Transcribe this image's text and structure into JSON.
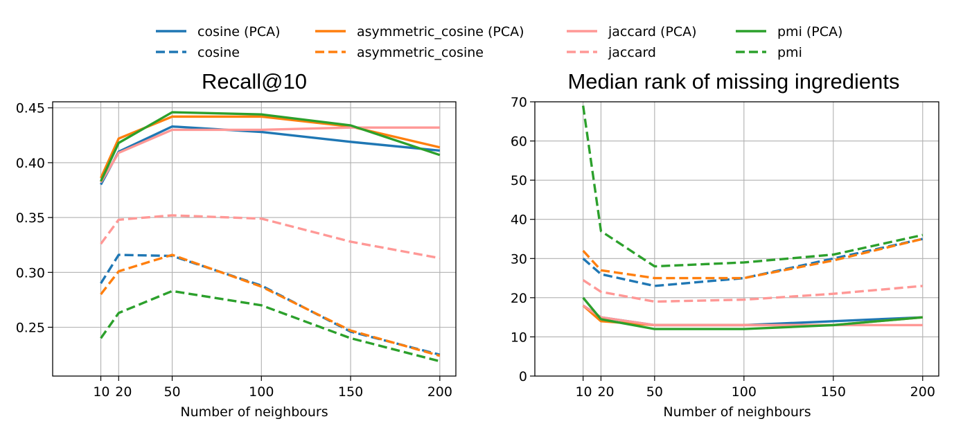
{
  "legend": {
    "entries": [
      {
        "label": "cosine (PCA)",
        "color": "#1f77b4",
        "style": "solid"
      },
      {
        "label": "cosine",
        "color": "#1f77b4",
        "style": "dashed"
      },
      {
        "label": "asymmetric_cosine (PCA)",
        "color": "#ff7f0e",
        "style": "solid"
      },
      {
        "label": "asymmetric_cosine",
        "color": "#ff7f0e",
        "style": "dashed"
      },
      {
        "label": "jaccard (PCA)",
        "color": "#ff9896",
        "style": "solid"
      },
      {
        "label": "jaccard",
        "color": "#ff9896",
        "style": "dashed"
      },
      {
        "label": "pmi (PCA)",
        "color": "#2ca02c",
        "style": "solid"
      },
      {
        "label": "pmi",
        "color": "#2ca02c",
        "style": "dashed"
      }
    ]
  },
  "chart_data": [
    {
      "type": "line",
      "title": "Recall@10",
      "xlabel": "Number of neighbours",
      "ylabel": "",
      "grid": true,
      "x": [
        10,
        20,
        50,
        100,
        150,
        200
      ],
      "xticks": [
        10,
        20,
        50,
        100,
        150,
        200
      ],
      "xtick_labels": [
        "10",
        "20",
        "50",
        "100",
        "150",
        "200"
      ],
      "yticks": [
        0.25,
        0.3,
        0.35,
        0.4,
        0.45
      ],
      "ytick_labels": [
        "0.25",
        "0.30",
        "0.35",
        "0.40",
        "0.45"
      ],
      "xlim": [
        -17,
        209
      ],
      "ylim": [
        0.2055,
        0.4555
      ],
      "series": [
        {
          "name": "cosine (PCA)",
          "color": "#1f77b4",
          "style": "solid",
          "values": [
            0.38,
            0.41,
            0.433,
            0.428,
            0.419,
            0.411
          ]
        },
        {
          "name": "cosine",
          "color": "#1f77b4",
          "style": "dashed",
          "values": [
            0.29,
            0.316,
            0.315,
            0.288,
            0.246,
            0.225
          ]
        },
        {
          "name": "asymmetric_cosine (PCA)",
          "color": "#ff7f0e",
          "style": "solid",
          "values": [
            0.386,
            0.422,
            0.442,
            0.442,
            0.433,
            0.414
          ]
        },
        {
          "name": "asymmetric_cosine",
          "color": "#ff7f0e",
          "style": "dashed",
          "values": [
            0.28,
            0.301,
            0.316,
            0.287,
            0.247,
            0.224
          ]
        },
        {
          "name": "jaccard (PCA)",
          "color": "#ff9896",
          "style": "solid",
          "values": [
            0.382,
            0.409,
            0.43,
            0.43,
            0.432,
            0.432
          ]
        },
        {
          "name": "jaccard",
          "color": "#ff9896",
          "style": "dashed",
          "values": [
            0.326,
            0.348,
            0.352,
            0.349,
            0.328,
            0.313
          ]
        },
        {
          "name": "pmi (PCA)",
          "color": "#2ca02c",
          "style": "solid",
          "values": [
            0.383,
            0.418,
            0.446,
            0.444,
            0.434,
            0.407
          ]
        },
        {
          "name": "pmi",
          "color": "#2ca02c",
          "style": "dashed",
          "values": [
            0.24,
            0.263,
            0.283,
            0.27,
            0.24,
            0.219
          ]
        }
      ]
    },
    {
      "type": "line",
      "title": "Median rank of missing ingredients",
      "xlabel": "Number of neighbours",
      "ylabel": "",
      "grid": true,
      "x": [
        10,
        20,
        50,
        100,
        150,
        200
      ],
      "xticks": [
        10,
        20,
        50,
        100,
        150,
        200
      ],
      "xtick_labels": [
        "10",
        "20",
        "50",
        "100",
        "150",
        "200"
      ],
      "yticks": [
        0,
        10,
        20,
        30,
        40,
        50,
        60,
        70
      ],
      "ytick_labels": [
        "0",
        "10",
        "20",
        "30",
        "40",
        "50",
        "60",
        "70"
      ],
      "xlim": [
        -17,
        209
      ],
      "ylim": [
        0,
        70
      ],
      "series": [
        {
          "name": "cosine (PCA)",
          "color": "#1f77b4",
          "style": "solid",
          "values": [
            18,
            15,
            13,
            13,
            14,
            15
          ]
        },
        {
          "name": "cosine",
          "color": "#1f77b4",
          "style": "dashed",
          "values": [
            30,
            26,
            23,
            25,
            30,
            35
          ]
        },
        {
          "name": "asymmetric_cosine (PCA)",
          "color": "#ff7f0e",
          "style": "solid",
          "values": [
            18,
            14,
            13,
            13,
            13,
            15
          ]
        },
        {
          "name": "asymmetric_cosine",
          "color": "#ff7f0e",
          "style": "dashed",
          "values": [
            32,
            27,
            25,
            25,
            29.5,
            35
          ]
        },
        {
          "name": "jaccard (PCA)",
          "color": "#ff9896",
          "style": "solid",
          "values": [
            18,
            15,
            13,
            13,
            13,
            13
          ]
        },
        {
          "name": "jaccard",
          "color": "#ff9896",
          "style": "dashed",
          "values": [
            24.5,
            21.5,
            19,
            19.5,
            21,
            23
          ]
        },
        {
          "name": "pmi (PCA)",
          "color": "#2ca02c",
          "style": "solid",
          "values": [
            20,
            14.5,
            12,
            12,
            13,
            15
          ]
        },
        {
          "name": "pmi",
          "color": "#2ca02c",
          "style": "dashed",
          "values": [
            69,
            37,
            28,
            29,
            31,
            36
          ]
        }
      ]
    }
  ]
}
